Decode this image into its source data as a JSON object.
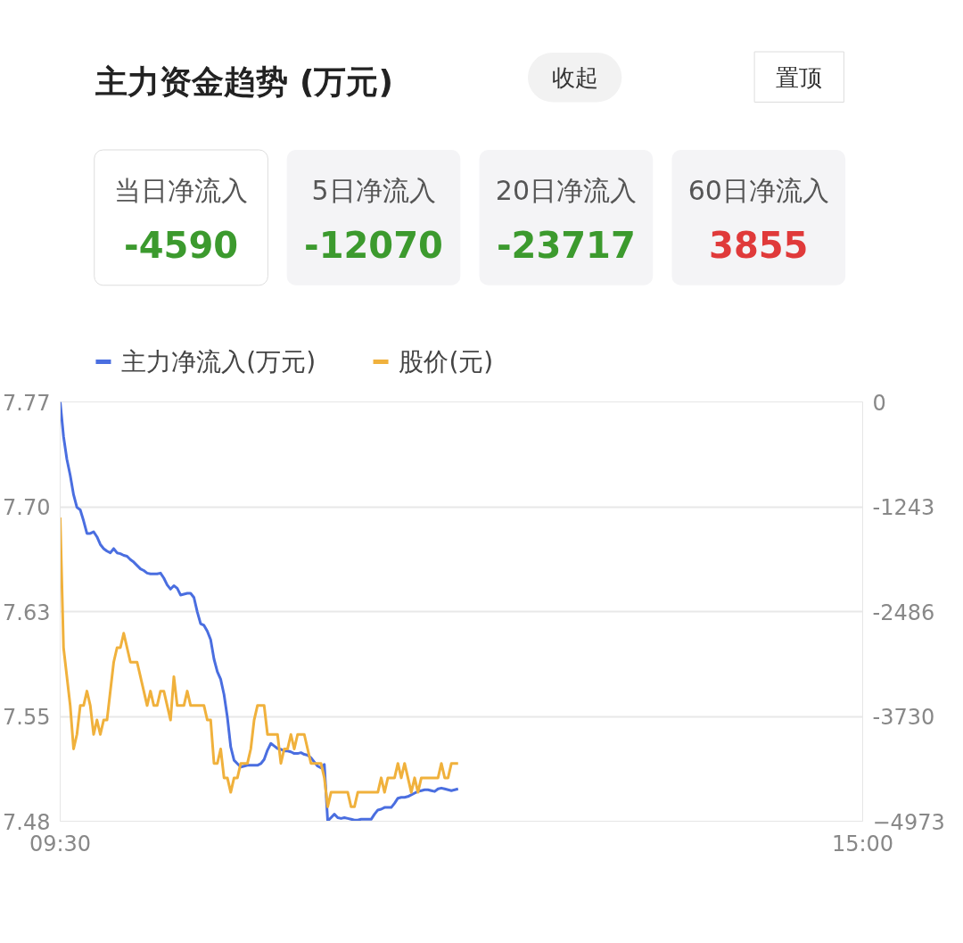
{
  "chart_data": [
    {
      "type": "other",
      "title": "主力资金趋势 (万元)",
      "annotations": [
        "收起",
        "置顶",
        "当日净流入",
        "-4590",
        "5日净流入",
        "-12070",
        "20日净流入",
        "-23717",
        "60日净流入",
        "3855"
      ]
    },
    {
      "type": "line",
      "categories": [
        "09:30",
        null,
        null,
        null,
        null,
        null,
        null,
        null,
        null,
        null,
        null,
        null,
        null,
        null,
        null,
        null,
        null,
        null,
        null,
        null,
        null,
        null,
        null,
        null,
        null,
        null,
        null,
        null,
        null,
        null,
        null,
        null,
        null,
        null,
        null,
        null,
        null,
        null,
        null,
        null,
        null,
        null,
        null,
        null,
        null,
        null,
        null,
        null,
        null,
        null,
        null,
        null,
        null,
        null,
        null,
        null,
        null,
        null,
        null,
        null,
        null,
        null,
        null,
        null,
        null,
        null,
        null,
        null,
        null,
        null,
        null,
        null,
        null,
        null,
        null,
        null,
        null,
        null,
        null,
        null,
        null,
        null,
        null,
        null,
        null,
        null,
        null,
        null,
        null,
        null,
        null,
        null,
        null,
        null,
        null,
        null,
        null,
        null,
        null,
        null,
        null,
        null,
        null,
        null,
        null,
        null,
        null,
        null,
        null,
        null,
        null,
        null,
        null,
        null,
        null,
        null,
        null,
        null,
        null,
        null,
        null,
        null,
        null,
        null,
        null,
        null,
        null,
        null,
        null,
        null,
        null,
        null,
        null,
        null,
        null,
        null,
        null,
        null,
        null,
        null,
        null,
        null,
        null,
        null,
        null,
        null,
        null,
        null,
        null,
        null,
        null,
        null,
        null,
        null,
        null,
        null,
        null,
        null,
        null,
        null,
        null,
        null,
        null,
        null,
        null,
        null,
        null,
        null,
        null,
        null,
        null,
        null,
        null,
        null,
        null,
        null,
        null,
        null,
        null,
        null,
        null,
        null,
        null,
        null,
        null,
        null,
        null,
        null,
        null,
        null,
        null,
        null,
        null,
        null,
        null,
        null,
        null,
        null,
        null,
        null,
        null,
        null,
        null,
        null,
        null,
        null,
        null,
        null,
        null,
        null,
        null,
        null,
        null,
        null,
        null,
        null,
        null,
        null,
        null,
        null,
        null,
        null,
        null,
        null,
        null,
        null,
        null,
        null,
        null,
        null,
        null,
        null,
        null,
        null,
        null,
        null,
        null,
        null,
        null,
        null,
        "15:00"
      ],
      "ylim": [
        7.48,
        7.77
      ],
      "yticks": [
        7.48,
        {
          "value": 7.5525,
          "label": "7.55"
        },
        {
          "value": 7.625,
          "label": "7.63"
        },
        {
          "value": 7.6975,
          "label": "7.70"
        },
        7.77
      ],
      "y2lim": [
        -4973,
        0
      ],
      "y2ticks": [
        -4973,
        {
          "value": -3729.75,
          "label": "-3730"
        },
        {
          "value": -2486.5,
          "label": "-2486"
        },
        {
          "value": -1243.25,
          "label": "-1243"
        },
        0
      ],
      "grid": "y",
      "legend": "top left",
      "line_style": "solid",
      "series": [
        {
          "name": "主力净流入(万元)",
          "color": "#4a6ee0",
          "axis": "y2",
          "values": [
            0,
            -410,
            -680,
            -870,
            -1100,
            -1250,
            -1280,
            -1410,
            -1560,
            -1560,
            -1540,
            -1600,
            -1690,
            -1740,
            -1770,
            -1790,
            -1740,
            -1790,
            -1800,
            -1820,
            -1830,
            -1870,
            -1900,
            -1940,
            -1980,
            -2000,
            -2030,
            -2040,
            -2040,
            -2040,
            -2030,
            -2090,
            -2170,
            -2220,
            -2180,
            -2210,
            -2290,
            -2280,
            -2270,
            -2270,
            -2320,
            -2490,
            -2630,
            -2650,
            -2720,
            -2820,
            -3050,
            -3200,
            -3290,
            -3470,
            -3740,
            -4090,
            -4250,
            -4290,
            -4330,
            -4320,
            -4310,
            -4310,
            -4310,
            -4310,
            -4290,
            -4240,
            -4130,
            -4050,
            -4080,
            -4110,
            -4120,
            -4140,
            -4140,
            -4150,
            -4170,
            -4170,
            -4160,
            -4180,
            -4190,
            -4220,
            -4270,
            -4320,
            -4340,
            -4300,
            -4970,
            -4930,
            -4890,
            -4930,
            -4940,
            -4930,
            -4940,
            -4950,
            -4960,
            -4960,
            -4950,
            -4950,
            -4950,
            -4950,
            -4890,
            -4840,
            -4830,
            -4810,
            -4810,
            -4810,
            -4760,
            -4700,
            -4690,
            -4690,
            -4680,
            -4660,
            -4640,
            -4620,
            -4610,
            -4600,
            -4600,
            -4610,
            -4620,
            -4590,
            -4580,
            -4590,
            -4600,
            -4610,
            -4600,
            -4590,
            null,
            null,
            null,
            null,
            null,
            null,
            null,
            null,
            null,
            null,
            null,
            null,
            null,
            null,
            null,
            null,
            null,
            null,
            null,
            null,
            null,
            null,
            null,
            null,
            null,
            null,
            null,
            null,
            null,
            null,
            null,
            null,
            null,
            null,
            null,
            null,
            null,
            null,
            null,
            null,
            null,
            null,
            null,
            null,
            null,
            null,
            null,
            null,
            null,
            null,
            null,
            null,
            null,
            null,
            null,
            null,
            null,
            null,
            null,
            null,
            null,
            null,
            null,
            null,
            null,
            null,
            null,
            null,
            null,
            null,
            null,
            null,
            null,
            null,
            null,
            null,
            null,
            null,
            null,
            null,
            null,
            null,
            null,
            null,
            null,
            null,
            null,
            null,
            null,
            null,
            null,
            null,
            null,
            null,
            null,
            null,
            null,
            null,
            null,
            null,
            null,
            null,
            null,
            null,
            null,
            null,
            null,
            null,
            null,
            null,
            null,
            null,
            null,
            null,
            null,
            null,
            null,
            null,
            null,
            null,
            null
          ]
        },
        {
          "name": "股价(元)",
          "color": "#f0b13c",
          "axis": "y",
          "values": [
            7.69,
            7.6,
            7.58,
            7.56,
            7.53,
            7.54,
            7.56,
            7.56,
            7.57,
            7.56,
            7.54,
            7.55,
            7.54,
            7.55,
            7.55,
            7.57,
            7.59,
            7.6,
            7.6,
            7.61,
            7.6,
            7.59,
            7.59,
            7.59,
            7.58,
            7.57,
            7.56,
            7.57,
            7.56,
            7.56,
            7.57,
            7.57,
            7.56,
            7.55,
            7.58,
            7.56,
            7.56,
            7.56,
            7.57,
            7.56,
            7.56,
            7.56,
            7.56,
            7.56,
            7.55,
            7.55,
            7.52,
            7.52,
            7.53,
            7.51,
            7.51,
            7.5,
            7.51,
            7.51,
            7.52,
            7.52,
            7.52,
            7.53,
            7.55,
            7.56,
            7.56,
            7.56,
            7.54,
            7.54,
            7.54,
            7.54,
            7.52,
            7.53,
            7.53,
            7.54,
            7.53,
            7.54,
            7.54,
            7.54,
            7.53,
            7.52,
            7.52,
            7.52,
            7.52,
            7.51,
            7.49,
            7.5,
            7.5,
            7.5,
            7.5,
            7.5,
            7.5,
            7.49,
            7.49,
            7.5,
            7.5,
            7.5,
            7.5,
            7.5,
            7.5,
            7.5,
            7.51,
            7.5,
            7.51,
            7.51,
            7.51,
            7.52,
            7.51,
            7.52,
            7.51,
            7.5,
            7.51,
            7.5,
            7.51,
            7.51,
            7.51,
            7.51,
            7.51,
            7.51,
            7.52,
            7.51,
            7.51,
            7.52,
            7.52,
            7.52,
            null,
            null,
            null,
            null,
            null,
            null,
            null,
            null,
            null,
            null,
            null,
            null,
            null,
            null,
            null,
            null,
            null,
            null,
            null,
            null,
            null,
            null,
            null,
            null,
            null,
            null,
            null,
            null,
            null,
            null,
            null,
            null,
            null,
            null,
            null,
            null,
            null,
            null,
            null,
            null,
            null,
            null,
            null,
            null,
            null,
            null,
            null,
            null,
            null,
            null,
            null,
            null,
            null,
            null,
            null,
            null,
            null,
            null,
            null,
            null,
            null,
            null,
            null,
            null,
            null,
            null,
            null,
            null,
            null,
            null,
            null,
            null,
            null,
            null,
            null,
            null,
            null,
            null,
            null,
            null,
            null,
            null,
            null,
            null,
            null,
            null,
            null,
            null,
            null,
            null,
            null,
            null,
            null,
            null,
            null,
            null,
            null,
            null,
            null,
            null,
            null,
            null,
            null,
            null,
            null,
            null,
            null,
            null,
            null,
            null,
            null,
            null,
            null,
            null,
            null,
            null,
            null,
            null,
            null,
            null,
            null
          ]
        }
      ]
    }
  ]
}
